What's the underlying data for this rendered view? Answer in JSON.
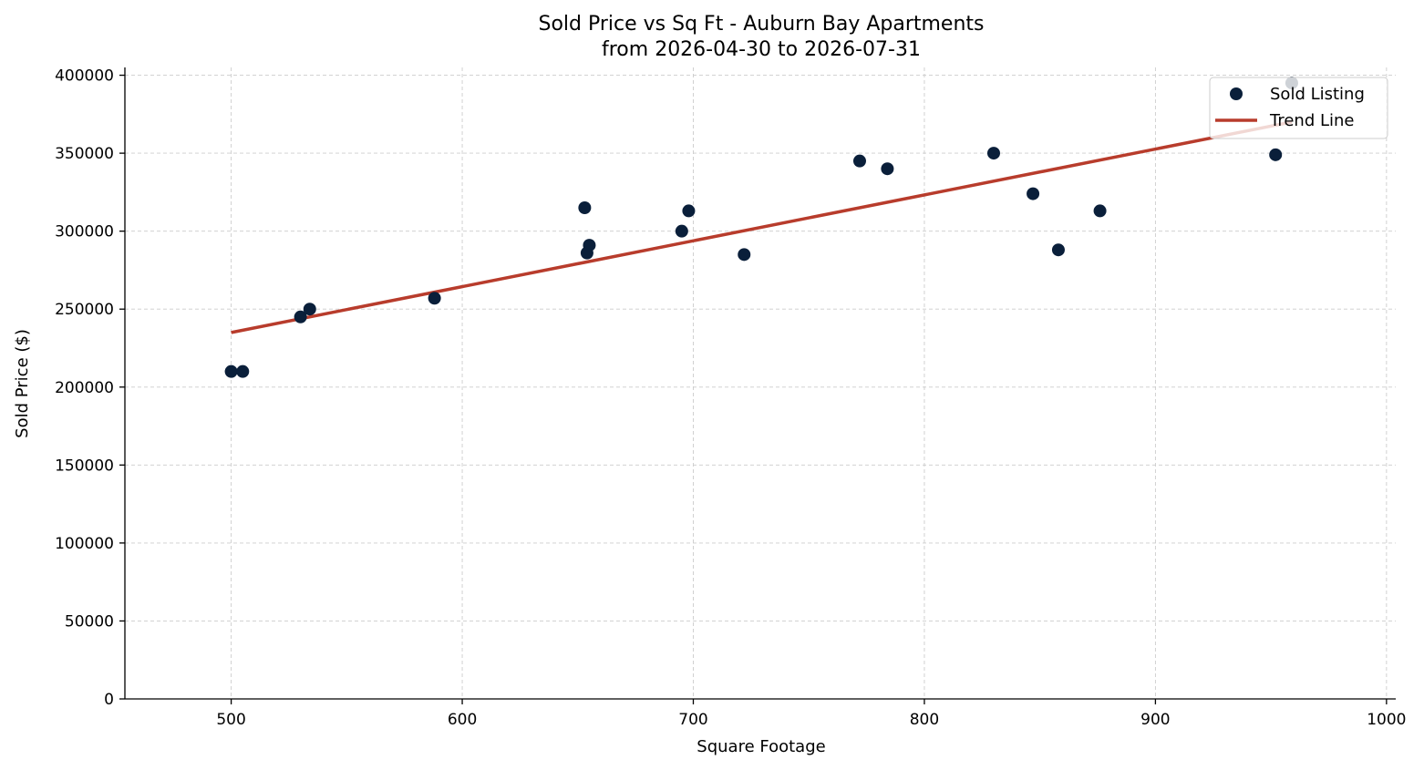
{
  "chart_data": {
    "type": "scatter",
    "title": "Sold Price vs Sq Ft - Auburn Bay Apartments",
    "subtitle": "from 2026-04-30 to 2026-07-31",
    "xlabel": "Square Footage",
    "ylabel": "Sold Price ($)",
    "xlim": [
      454,
      1004
    ],
    "ylim": [
      0,
      405000
    ],
    "xticks": [
      500,
      600,
      700,
      800,
      900,
      1000
    ],
    "yticks": [
      0,
      50000,
      100000,
      150000,
      200000,
      250000,
      300000,
      350000,
      400000
    ],
    "grid": true,
    "legend_position": "top-right",
    "colors": {
      "points": "#0a1f3a",
      "trend": "#b83c2c"
    },
    "series": [
      {
        "name": "Sold Listing",
        "kind": "scatter",
        "x": [
          500,
          505,
          530,
          534,
          588,
          653,
          654,
          655,
          695,
          698,
          722,
          772,
          784,
          830,
          847,
          858,
          876,
          952,
          959
        ],
        "y": [
          210000,
          210000,
          245000,
          250000,
          257000,
          315000,
          286000,
          291000,
          300000,
          313000,
          285000,
          345000,
          340000,
          350000,
          324000,
          288000,
          313000,
          349000,
          395000
        ]
      },
      {
        "name": "Trend Line",
        "kind": "line",
        "x": [
          500,
          959
        ],
        "y": [
          235000,
          370000
        ]
      }
    ]
  }
}
